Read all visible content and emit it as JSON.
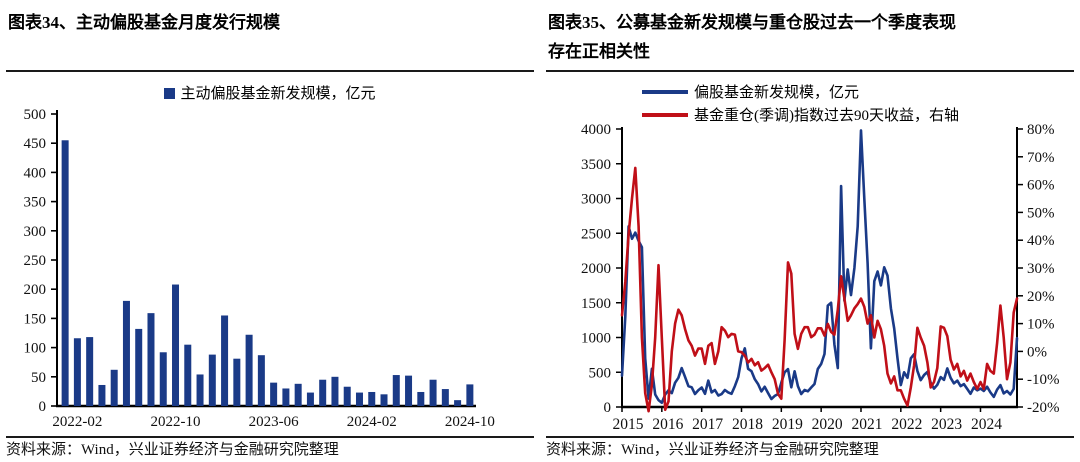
{
  "panels": {
    "left": {
      "title": "图表34、主动偏股基金月度发行规模",
      "legend": "主动偏股基金新发规模，亿元",
      "source": "资料来源：Wind，兴业证券经济与金融研究院整理"
    },
    "right": {
      "title_line1": "图表35、公募基金新发规模与重仓股过去一个季度表现",
      "title_line2": "存在正相关性",
      "legend_blue": "偏股基金新发规模，亿元",
      "legend_red": "基金重仓(季调)指数过去90天收益，右轴",
      "source": "资料来源：Wind，兴业证券经济与金融研究院整理"
    }
  },
  "colors": {
    "navy": "#1A3A87",
    "red": "#C00F18",
    "axis": "#000000",
    "text": "#111111"
  },
  "chart_data": [
    {
      "type": "bar",
      "title": "主动偏股基金月度发行规模",
      "series_name": "主动偏股基金新发规模，亿元",
      "unit": "亿元",
      "ylim": [
        0,
        500
      ],
      "ytick_step": 50,
      "ytick_labels": [
        "0",
        "50",
        "100",
        "150",
        "200",
        "250",
        "300",
        "350",
        "400",
        "450",
        "500"
      ],
      "grid": false,
      "categories": [
        "2022-01",
        "2022-02",
        "2022-03",
        "2022-04",
        "2022-05",
        "2022-06",
        "2022-07",
        "2022-08",
        "2022-09",
        "2022-10",
        "2022-11",
        "2022-12",
        "2023-01",
        "2023-02",
        "2023-03",
        "2023-04",
        "2023-05",
        "2023-06",
        "2023-07",
        "2023-08",
        "2023-09",
        "2023-10",
        "2023-11",
        "2023-12",
        "2024-01",
        "2024-02",
        "2024-03",
        "2024-04",
        "2024-05",
        "2024-06",
        "2024-07",
        "2024-08",
        "2024-09",
        "2024-10"
      ],
      "values": [
        455,
        116,
        118,
        36,
        62,
        180,
        132,
        159,
        92,
        208,
        105,
        54,
        88,
        155,
        81,
        122,
        87,
        40,
        30,
        38,
        23,
        45,
        50,
        33,
        23,
        24,
        20,
        53,
        52,
        24,
        45,
        29,
        10,
        37
      ],
      "xtick_shown": [
        {
          "index": 1,
          "label": "2022-02"
        },
        {
          "index": 9,
          "label": "2022-10"
        },
        {
          "index": 17,
          "label": "2023-06"
        },
        {
          "index": 25,
          "label": "2024-02"
        },
        {
          "index": 33,
          "label": "2024-10"
        }
      ]
    },
    {
      "type": "line",
      "title": "公募基金新发规模与重仓股过去一个季度表现存在正相关性",
      "x_start_year": 2015,
      "x_months": 120,
      "xtick_labels": [
        "2015",
        "2016",
        "2017",
        "2018",
        "2019",
        "2020",
        "2021",
        "2022",
        "2023",
        "2024"
      ],
      "ylim_left": [
        0,
        4000
      ],
      "ytick_left_labels": [
        "0",
        "500",
        "1000",
        "1500",
        "2000",
        "2500",
        "3000",
        "3500",
        "4000"
      ],
      "ylim_right": [
        -20,
        80
      ],
      "ytick_right_labels": [
        "-20%",
        "-10%",
        "0%",
        "10%",
        "20%",
        "30%",
        "40%",
        "50%",
        "60%",
        "70%",
        "80%"
      ],
      "grid": false,
      "legend_position": "top",
      "series": [
        {
          "name": "偏股基金新发规模，亿元",
          "axis": "left",
          "color_key": "navy",
          "values": [
            450,
            1300,
            2600,
            2420,
            2510,
            2390,
            2300,
            700,
            120,
            550,
            180,
            100,
            60,
            180,
            240,
            200,
            350,
            420,
            560,
            430,
            300,
            283,
            187,
            240,
            280,
            190,
            380,
            210,
            245,
            165,
            185,
            245,
            210,
            190,
            300,
            430,
            700,
            845,
            550,
            515,
            400,
            330,
            225,
            290,
            200,
            115,
            160,
            185,
            350,
            500,
            545,
            283,
            514,
            300,
            187,
            245,
            226,
            280,
            331,
            547,
            620,
            763,
            1459,
            1500,
            900,
            560,
            3180,
            1530,
            1980,
            1610,
            2000,
            2600,
            3980,
            3000,
            2070,
            845,
            1810,
            1950,
            1750,
            2010,
            1890,
            1420,
            1130,
            700,
            315,
            500,
            420,
            700,
            760,
            520,
            385,
            460,
            505,
            350,
            265,
            320,
            430,
            390,
            555,
            420,
            340,
            380,
            300,
            330,
            260,
            190,
            280,
            240,
            265,
            230,
            290,
            210,
            145,
            250,
            315,
            195,
            230,
            180,
            260,
            990
          ]
        },
        {
          "name": "基金重仓(季调)指数过去90天收益，右轴",
          "axis": "right",
          "color_key": "red",
          "values": [
            13,
            25,
            42,
            55,
            66,
            45,
            5,
            -15,
            -21.5,
            -12,
            5,
            31,
            5,
            -21,
            -18,
            0,
            10,
            15,
            13,
            8,
            4,
            2,
            -1.5,
            1,
            1,
            -4.5,
            2,
            3,
            -4.5,
            0,
            8.7,
            7.5,
            5.1,
            6.3,
            6,
            0,
            -0.3,
            -1.5,
            -4,
            -2.7,
            -5,
            -3.9,
            -6.9,
            -6,
            -4.8,
            -7.5,
            -10,
            -15.3,
            -17,
            4,
            32,
            28,
            6.3,
            0.9,
            6.3,
            8.7,
            8.7,
            5.1,
            6,
            8.3,
            8.3,
            5.7,
            9.9,
            7,
            6,
            15,
            27,
            19,
            11,
            13,
            15.5,
            17,
            19,
            16,
            10,
            13,
            5,
            11,
            8,
            2,
            -8,
            -11.5,
            -9,
            -14,
            -14,
            -17,
            -19.5,
            -13,
            -5,
            8.5,
            5,
            2,
            -4,
            -13,
            -11,
            -6,
            9,
            8.5,
            5.5,
            -3,
            -6.5,
            -4.5,
            -9,
            -7,
            -10.5,
            -8,
            -11,
            -13.5,
            -11,
            -13.5,
            -4.5,
            -7,
            -8,
            3,
            16.5,
            5,
            -10,
            -4,
            14,
            19
          ]
        }
      ]
    }
  ]
}
